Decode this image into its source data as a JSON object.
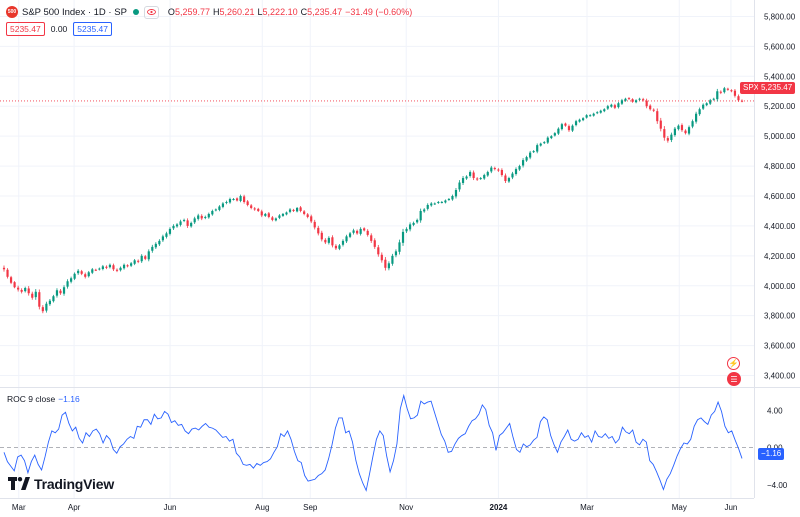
{
  "legend": {
    "logo_text": "500",
    "title": "S&P 500 Index · 1D · SP",
    "o_key": "O",
    "o_val": "5,259.77",
    "h_key": "H",
    "h_val": "5,260.21",
    "l_key": "L",
    "l_val": "5,222.10",
    "c_key": "C",
    "c_val": "5,235.47",
    "change": "−31.49 (−0.60%)"
  },
  "trade": {
    "sell": "5235.47",
    "spread": "0.00",
    "buy": "5235.47"
  },
  "roc": {
    "label": "ROC 9 close",
    "value": "−1.16"
  },
  "badges": {
    "symbol": "SPX",
    "price": "5,235.47",
    "roc": "−1.16"
  },
  "brand": {
    "name": "TradingView"
  },
  "colors": {
    "up": "#089981",
    "down": "#f23645",
    "roc_line": "#2962ff",
    "grid": "#f0f3fa"
  },
  "chart_data": [
    {
      "type": "candlestick",
      "title": "S&P 500 Index · 1D · SP",
      "x_tick_labels": [
        "Mar",
        "Apr",
        "Jun",
        "Aug",
        "Sep",
        "Nov",
        "2024",
        "Mar",
        "May",
        "Jun"
      ],
      "y_tick_labels": [
        "3,400.00",
        "3,600.00",
        "3,800.00",
        "4,000.00",
        "4,200.00",
        "4,400.00",
        "4,600.00",
        "4,800.00",
        "5,000.00",
        "5,200.00",
        "5,400.00",
        "5,600.00",
        "5,800.00"
      ],
      "ylim": [
        3330,
        5890
      ],
      "last_price": 5235.47,
      "grid": true,
      "closes": [
        4110,
        4060,
        4020,
        3990,
        3975,
        3960,
        3985,
        3950,
        3920,
        3960,
        3860,
        3830,
        3880,
        3900,
        3930,
        3970,
        3950,
        3990,
        4030,
        4050,
        4080,
        4100,
        4080,
        4060,
        4090,
        4110,
        4105,
        4115,
        4130,
        4120,
        4140,
        4110,
        4100,
        4120,
        4140,
        4130,
        4150,
        4170,
        4160,
        4200,
        4180,
        4230,
        4260,
        4280,
        4300,
        4330,
        4350,
        4380,
        4400,
        4410,
        4430,
        4440,
        4400,
        4420,
        4450,
        4470,
        4450,
        4460,
        4480,
        4500,
        4510,
        4530,
        4550,
        4560,
        4580,
        4580,
        4570,
        4600,
        4560,
        4540,
        4520,
        4510,
        4500,
        4470,
        4480,
        4460,
        4440,
        4450,
        4470,
        4480,
        4490,
        4510,
        4500,
        4520,
        4500,
        4480,
        4460,
        4430,
        4390,
        4350,
        4310,
        4290,
        4320,
        4270,
        4250,
        4270,
        4300,
        4330,
        4350,
        4370,
        4350,
        4380,
        4370,
        4340,
        4300,
        4260,
        4210,
        4170,
        4120,
        4150,
        4200,
        4230,
        4290,
        4360,
        4380,
        4410,
        4420,
        4440,
        4500,
        4510,
        4540,
        4550,
        4550,
        4560,
        4560,
        4570,
        4580,
        4600,
        4640,
        4690,
        4720,
        4730,
        4760,
        4720,
        4710,
        4720,
        4740,
        4760,
        4790,
        4780,
        4770,
        4740,
        4700,
        4720,
        4750,
        4780,
        4800,
        4840,
        4860,
        4890,
        4900,
        4940,
        4950,
        4960,
        4990,
        5000,
        5020,
        5050,
        5080,
        5070,
        5040,
        5070,
        5100,
        5110,
        5120,
        5140,
        5140,
        5150,
        5160,
        5170,
        5180,
        5200,
        5210,
        5190,
        5220,
        5240,
        5250,
        5250,
        5230,
        5240,
        5250,
        5240,
        5200,
        5180,
        5170,
        5100,
        5050,
        4990,
        4970,
        5010,
        5050,
        5070,
        5040,
        5020,
        5060,
        5100,
        5150,
        5180,
        5210,
        5220,
        5240,
        5250,
        5300,
        5290,
        5320,
        5310,
        5300,
        5270,
        5240,
        5235.47
      ],
      "candle_sizes": [
        35,
        25,
        20,
        15,
        30,
        25,
        20,
        35,
        30,
        40,
        40,
        30,
        30,
        25,
        20,
        30,
        25,
        30,
        30,
        25,
        20,
        25,
        20,
        25,
        20,
        20,
        15,
        15,
        20,
        20,
        20,
        25,
        20,
        20,
        20,
        15,
        20,
        20,
        20,
        25,
        20,
        30,
        30,
        25,
        25,
        25,
        25,
        25,
        25,
        20,
        25,
        20,
        30,
        20,
        25,
        25,
        25,
        20,
        20,
        20,
        15,
        20,
        20,
        20,
        20,
        15,
        15,
        20,
        25,
        20,
        20,
        20,
        15,
        25,
        15,
        20,
        20,
        15,
        20,
        15,
        15,
        20,
        15,
        15,
        20,
        20,
        20,
        25,
        30,
        30,
        30,
        25,
        25,
        30,
        25,
        20,
        25,
        25,
        20,
        25,
        20,
        25,
        15,
        25,
        30,
        30,
        35,
        35,
        40,
        30,
        30,
        30,
        40,
        45,
        25,
        30,
        20,
        20,
        35,
        20,
        25,
        20,
        15,
        15,
        15,
        15,
        15,
        20,
        30,
        35,
        30,
        20,
        25,
        30,
        20,
        15,
        20,
        20,
        25,
        20,
        20,
        25,
        30,
        20,
        25,
        25,
        20,
        30,
        20,
        25,
        15,
        25,
        15,
        15,
        20,
        15,
        15,
        20,
        20,
        15,
        25,
        20,
        20,
        15,
        15,
        15,
        15,
        15,
        15,
        15,
        15,
        20,
        15,
        20,
        20,
        20,
        15,
        15,
        15,
        15,
        15,
        20,
        30,
        20,
        20,
        40,
        40,
        45,
        30,
        30,
        25,
        20,
        25,
        20,
        25,
        25,
        30,
        25,
        20,
        15,
        20,
        15,
        35,
        20,
        20,
        15,
        15,
        25,
        25,
        20
      ],
      "roc_label": "ROC 9 close",
      "roc_tick_labels": [
        "4.00",
        "0.00",
        "−4.00"
      ],
      "roc_ylim": [
        -5.2,
        6.2
      ],
      "roc_values": [
        -0.5,
        -1.5,
        -2.0,
        -2.5,
        -1.0,
        -0.8,
        -1.4,
        -2.7,
        -1.5,
        -0.8,
        -1.8,
        -2.4,
        -1.0,
        0.6,
        1.8,
        1.6,
        2.0,
        3.5,
        3.8,
        2.6,
        1.8,
        2.2,
        1.0,
        0.5,
        1.6,
        1.2,
        1.8,
        2.0,
        1.5,
        0.5,
        1.3,
        0.9,
        -0.2,
        -0.6,
        0.1,
        0.4,
        0.9,
        1.2,
        1.0,
        2.3,
        2.2,
        3.0,
        3.0,
        2.5,
        3.6,
        3.1,
        3.2,
        3.9,
        3.6,
        2.7,
        2.9,
        2.4,
        2.5,
        1.8,
        1.5,
        2.0,
        2.1,
        1.9,
        2.3,
        2.6,
        2.2,
        2.1,
        1.9,
        1.5,
        1.1,
        1.2,
        0.7,
        0.9,
        -0.6,
        -1.0,
        -1.8,
        -1.9,
        -1.8,
        -2.2,
        -1.7,
        -1.9,
        -1.6,
        -1.5,
        -1.2,
        -0.5,
        0.1,
        1.5,
        1.2,
        1.8,
        0.9,
        -0.4,
        -1.4,
        -1.6,
        -3.0,
        -3.6,
        -3.5,
        -3.4,
        -3.0,
        -2.8,
        -2.4,
        -1.2,
        0.3,
        2.1,
        3.2,
        3.2,
        1.6,
        1.8,
        0.6,
        -1.4,
        -2.8,
        -3.8,
        -4.6,
        -2.8,
        -0.9,
        0.9,
        1.8,
        1.3,
        -0.9,
        -2.6,
        -1.4,
        0.4,
        4.2,
        5.6,
        4.2,
        3.1,
        3.2,
        3.5,
        5.0,
        4.7,
        4.9,
        5.0,
        3.8,
        2.6,
        1.4,
        0.7,
        -0.5,
        -0.4,
        0.4,
        1.0,
        1.3,
        1.5,
        2.3,
        2.9,
        3.1,
        3.6,
        4.6,
        4.1,
        2.4,
        1.6,
        -0.3,
        1.3,
        1.6,
        2.1,
        2.6,
        1.1,
        -0.2,
        -0.5,
        0.4,
        0.1,
        0.3,
        0.8,
        1.1,
        2.8,
        3.3,
        3.0,
        1.3,
        0.3,
        -0.5,
        0.6,
        1.2,
        1.9,
        0.9,
        0.7,
        0.9,
        1.6,
        1.1,
        1.3,
        0.6,
        1.8,
        1.2,
        1.1,
        1.5,
        1.0,
        1.2,
        0.5,
        0.9,
        2.2,
        1.7,
        1.5,
        1.9,
        0.6,
        0.3,
        0.9,
        0.6,
        -1.4,
        -1.8,
        -2.6,
        -3.5,
        -4.5,
        -3.4,
        -2.8,
        -1.9,
        -0.9,
        -0.1,
        0.5,
        0.4,
        0.9,
        2.3,
        3.0,
        3.2,
        2.8,
        2.5,
        3.5,
        3.9,
        4.9,
        3.9,
        2.3,
        1.6,
        1.8,
        0.8,
        -0.1,
        -1.16
      ]
    }
  ]
}
